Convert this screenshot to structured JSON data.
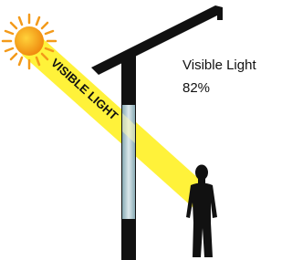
{
  "beam_label": "VISIBLE LIGHT",
  "caption": {
    "title": "Visible Light",
    "value": "82%"
  }
}
